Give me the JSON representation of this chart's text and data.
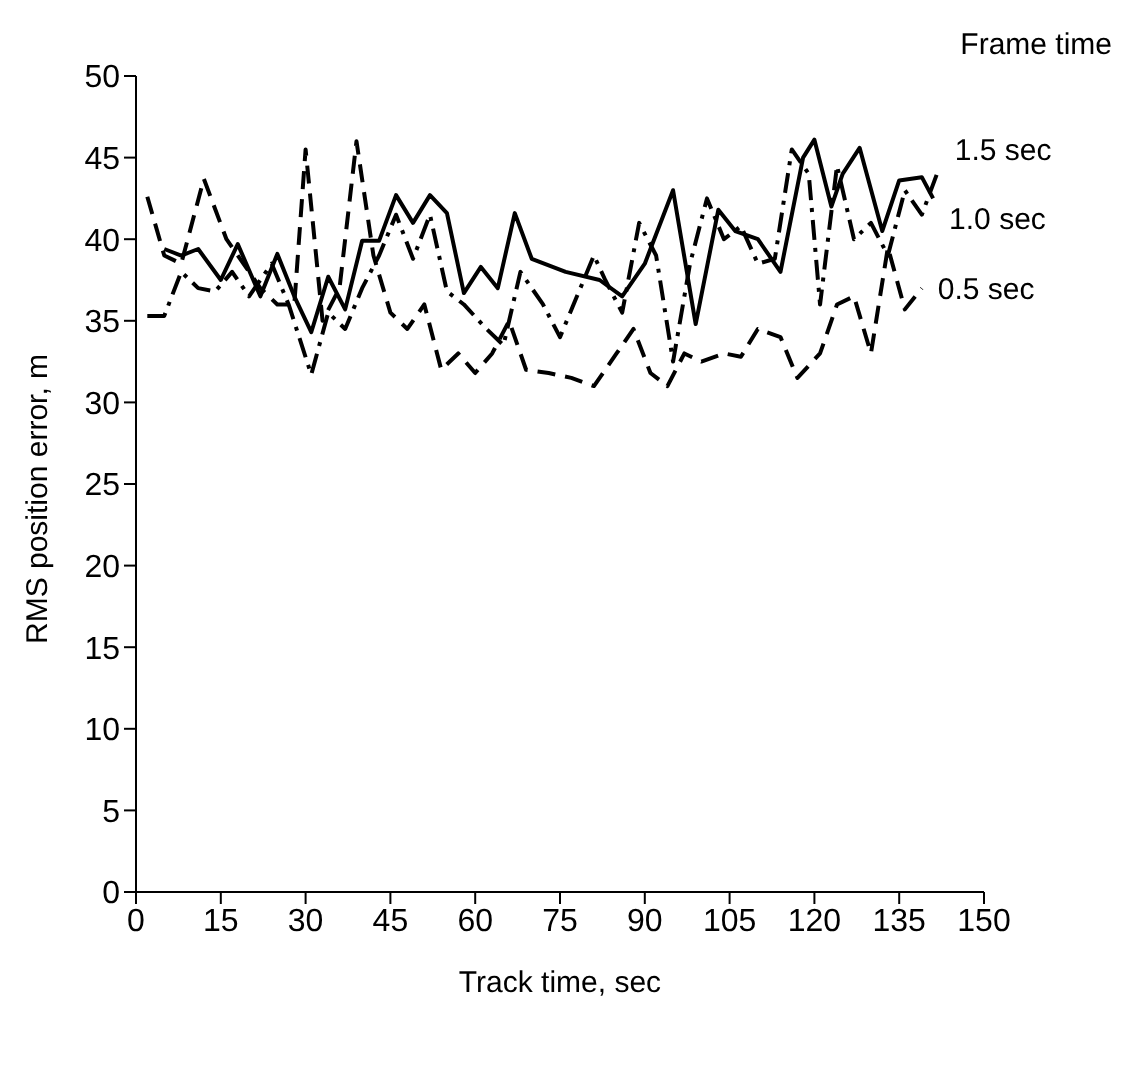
{
  "chart_data": {
    "type": "line",
    "xlabel": "Track time, sec",
    "ylabel": "RMS position error, m",
    "legend_title": "Frame time",
    "marker": "none",
    "xlim": [
      0,
      150
    ],
    "xticks": [
      0,
      15,
      30,
      45,
      60,
      75,
      90,
      105,
      120,
      135,
      150
    ],
    "ylim": [
      0,
      50
    ],
    "yticks": [
      0,
      5,
      10,
      15,
      20,
      25,
      30,
      35,
      40,
      45,
      50
    ],
    "series": [
      {
        "name": "1.5 sec",
        "color": "#000000",
        "line_style": "dotted",
        "x": [
          2,
          5,
          8,
          11,
          14,
          17,
          20,
          24,
          27,
          31,
          34,
          37,
          40,
          43,
          46,
          49,
          52,
          55,
          58,
          62,
          65,
          68,
          72,
          75,
          78,
          81,
          83,
          86,
          89,
          92,
          95,
          98,
          101,
          104,
          107,
          110,
          113,
          116,
          119,
          121,
          124,
          127,
          130,
          133,
          136,
          139,
          142
        ],
        "values": [
          35.3,
          35.3,
          38,
          37,
          36.8,
          38,
          36.5,
          38.5,
          36,
          31.7,
          35.5,
          34.5,
          37,
          39,
          41.5,
          38.8,
          41.5,
          36.8,
          36,
          34.5,
          33.5,
          38,
          36,
          34,
          36.5,
          39,
          37.5,
          35.5,
          41,
          39,
          32.5,
          38.5,
          42.5,
          40,
          40.8,
          38.5,
          38.8,
          45.5,
          44,
          36,
          44.5,
          40,
          41,
          39,
          43,
          41.5,
          44.3
        ]
      },
      {
        "name": "1.0 sec",
        "color": "#000000",
        "line_style": "solid",
        "x": [
          5,
          8,
          11,
          15,
          18,
          22,
          25,
          28,
          31,
          34,
          37,
          40,
          43,
          46,
          49,
          52,
          55,
          58,
          61,
          64,
          67,
          70,
          76,
          82,
          86,
          90,
          95,
          99,
          103,
          106,
          110,
          114,
          118,
          120,
          123,
          125,
          128,
          132,
          135,
          139,
          141
        ],
        "values": [
          39.4,
          39,
          39.4,
          37.5,
          39.7,
          36.5,
          39.1,
          36.5,
          34.3,
          37.7,
          35.7,
          39.9,
          39.9,
          42.7,
          41,
          42.7,
          41.6,
          36.7,
          38.3,
          37,
          41.6,
          38.8,
          38,
          37.5,
          36.5,
          38.5,
          43,
          34.8,
          41.8,
          40.5,
          40,
          38,
          45,
          46.1,
          42,
          44,
          45.6,
          40.5,
          43.6,
          43.8,
          42.5
        ]
      },
      {
        "name": "0.5 sec",
        "color": "#000000",
        "line_style": "dashed",
        "x": [
          2,
          5,
          8,
          12,
          16,
          19,
          22,
          25,
          28,
          30,
          33,
          36,
          39,
          42,
          45,
          48,
          51,
          54,
          57,
          60,
          63,
          66,
          69,
          73,
          77,
          81,
          85,
          88,
          91,
          94,
          97,
          100,
          104,
          107,
          110,
          114,
          117,
          121,
          124,
          127,
          130,
          133,
          136,
          139
        ],
        "values": [
          42.6,
          39,
          38.5,
          43.7,
          40,
          38.5,
          37,
          36,
          36,
          45.5,
          35,
          37,
          46,
          39,
          35.5,
          34.5,
          36,
          32,
          33,
          31.8,
          33,
          35,
          32,
          31.8,
          31.5,
          31,
          33,
          34.5,
          31.8,
          31,
          33,
          32.5,
          33,
          32.8,
          34.5,
          34,
          31.5,
          33,
          36,
          36.5,
          33,
          39.5,
          35.7,
          37
        ]
      }
    ]
  }
}
